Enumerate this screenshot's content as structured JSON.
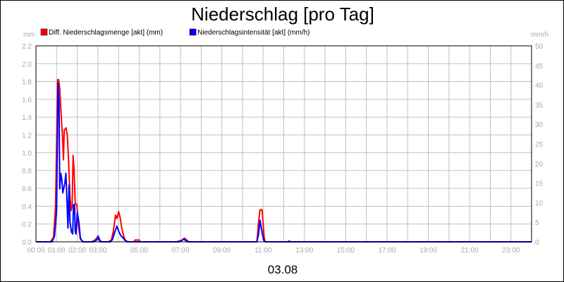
{
  "chart_data": {
    "type": "line",
    "title": "Niederschlag [pro Tag]",
    "date_label": "03.08",
    "y_left": {
      "unit": "mm",
      "range": [
        0,
        2.2
      ],
      "ticks": [
        "0.0",
        "0.2",
        "0.4",
        "0.6",
        "0.8",
        "1.0",
        "1.2",
        "1.4",
        "1.6",
        "1.8",
        "2.0",
        "2.2"
      ]
    },
    "y_right": {
      "unit": "mm/h",
      "range": [
        0,
        50
      ],
      "ticks": [
        "0",
        "5",
        "10",
        "15",
        "20",
        "25",
        "30",
        "35",
        "40",
        "45",
        "50"
      ]
    },
    "x_axis": {
      "range_hours": [
        0,
        24
      ],
      "ticks": [
        "00:00",
        "01:00",
        "02:00",
        "03:00",
        "05:00",
        "07:00",
        "09:00",
        "11:00",
        "13:00",
        "15:00",
        "17:00",
        "19:00",
        "21:00",
        "23:00"
      ],
      "tick_hours": [
        0,
        1,
        2,
        3,
        5,
        7,
        9,
        11,
        13,
        15,
        17,
        19,
        21,
        23
      ]
    },
    "grid": true,
    "legend_position": "top-left",
    "series": [
      {
        "name": "Diff. Niederschlagsmenge [akt] (mm)",
        "axis": "left",
        "color": "#ff0000",
        "points": [
          [
            0.0,
            0
          ],
          [
            0.7,
            0
          ],
          [
            0.85,
            0.05
          ],
          [
            0.95,
            0.4
          ],
          [
            1.05,
            1.82
          ],
          [
            1.1,
            1.82
          ],
          [
            1.15,
            1.72
          ],
          [
            1.2,
            1.5
          ],
          [
            1.28,
            1.2
          ],
          [
            1.33,
            0.92
          ],
          [
            1.37,
            1.25
          ],
          [
            1.45,
            1.28
          ],
          [
            1.52,
            1.2
          ],
          [
            1.58,
            0.9
          ],
          [
            1.65,
            0.5
          ],
          [
            1.7,
            0.35
          ],
          [
            1.75,
            0.4
          ],
          [
            1.8,
            0.97
          ],
          [
            1.85,
            0.8
          ],
          [
            1.9,
            0.43
          ],
          [
            1.98,
            0.42
          ],
          [
            2.05,
            0.2
          ],
          [
            2.15,
            0.03
          ],
          [
            2.3,
            0
          ],
          [
            2.7,
            0
          ],
          [
            2.85,
            0.02
          ],
          [
            2.98,
            0.05
          ],
          [
            3.05,
            0.02
          ],
          [
            3.2,
            0
          ],
          [
            3.5,
            0
          ],
          [
            3.65,
            0.02
          ],
          [
            3.75,
            0.12
          ],
          [
            3.85,
            0.3
          ],
          [
            3.92,
            0.26
          ],
          [
            4.0,
            0.34
          ],
          [
            4.08,
            0.27
          ],
          [
            4.15,
            0.16
          ],
          [
            4.25,
            0.06
          ],
          [
            4.35,
            0.01
          ],
          [
            4.5,
            0
          ],
          [
            4.75,
            0
          ],
          [
            4.8,
            0.02
          ],
          [
            5.0,
            0.02
          ],
          [
            5.05,
            0
          ],
          [
            6.8,
            0
          ],
          [
            6.95,
            0.01
          ],
          [
            7.1,
            0.02
          ],
          [
            7.2,
            0.04
          ],
          [
            7.3,
            0.02
          ],
          [
            7.4,
            0
          ],
          [
            10.5,
            0
          ],
          [
            10.7,
            0
          ],
          [
            10.78,
            0.22
          ],
          [
            10.85,
            0.36
          ],
          [
            10.95,
            0.36
          ],
          [
            11.05,
            0.05
          ],
          [
            11.1,
            0
          ],
          [
            12.2,
            0
          ],
          [
            12.25,
            0.01
          ],
          [
            12.35,
            0
          ],
          [
            24.0,
            0
          ]
        ]
      },
      {
        "name": "Niederschlagsintensität [akt] (mm/h)",
        "axis": "right",
        "color": "#0000ff",
        "points": [
          [
            0.0,
            0
          ],
          [
            0.78,
            0
          ],
          [
            0.9,
            1.5
          ],
          [
            1.0,
            8
          ],
          [
            1.07,
            40.5
          ],
          [
            1.12,
            35
          ],
          [
            1.15,
            13.5
          ],
          [
            1.2,
            17.5
          ],
          [
            1.25,
            16
          ],
          [
            1.3,
            12.5
          ],
          [
            1.4,
            15
          ],
          [
            1.45,
            17.5
          ],
          [
            1.5,
            11
          ],
          [
            1.55,
            3.5
          ],
          [
            1.6,
            14.5
          ],
          [
            1.65,
            5
          ],
          [
            1.72,
            2.5
          ],
          [
            1.78,
            2
          ],
          [
            1.82,
            9.5
          ],
          [
            1.87,
            9.5
          ],
          [
            1.9,
            2.5
          ],
          [
            1.94,
            2
          ],
          [
            2.0,
            7.5
          ],
          [
            2.08,
            5
          ],
          [
            2.15,
            1
          ],
          [
            2.25,
            0
          ],
          [
            2.8,
            0
          ],
          [
            2.95,
            0.5
          ],
          [
            3.0,
            1.5
          ],
          [
            3.05,
            1
          ],
          [
            3.12,
            0
          ],
          [
            3.6,
            0
          ],
          [
            3.7,
            0.5
          ],
          [
            3.82,
            2.5
          ],
          [
            3.92,
            4
          ],
          [
            4.02,
            2.5
          ],
          [
            4.12,
            1.5
          ],
          [
            4.22,
            1
          ],
          [
            4.32,
            0.3
          ],
          [
            4.42,
            0
          ],
          [
            6.95,
            0
          ],
          [
            7.05,
            0.3
          ],
          [
            7.15,
            0.8
          ],
          [
            7.25,
            0.3
          ],
          [
            7.35,
            0
          ],
          [
            10.7,
            0
          ],
          [
            10.78,
            2
          ],
          [
            10.85,
            5.5
          ],
          [
            10.93,
            3
          ],
          [
            11.02,
            0.5
          ],
          [
            11.1,
            0
          ],
          [
            24.0,
            0
          ]
        ]
      }
    ]
  }
}
